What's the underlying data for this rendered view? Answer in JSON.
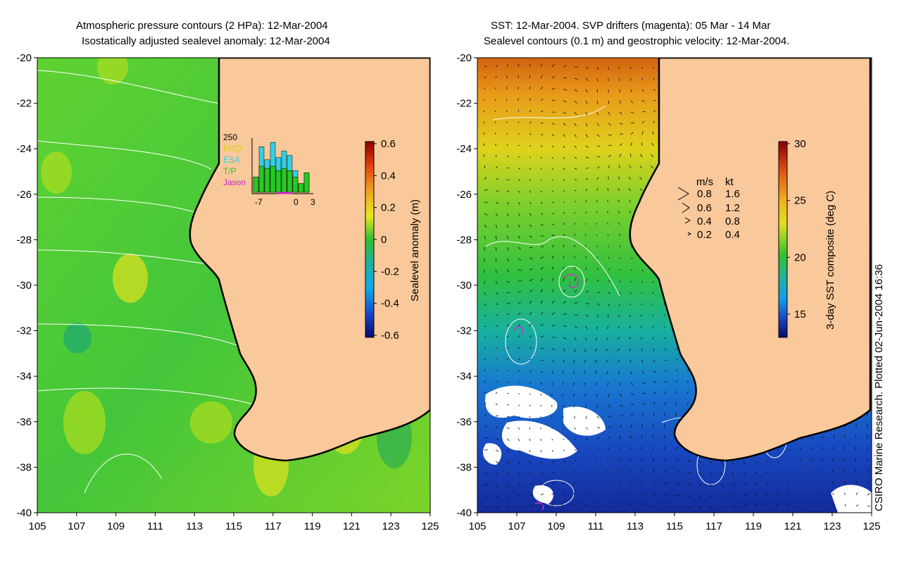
{
  "left_panel": {
    "title_line1": "Atmospheric pressure contours (2 HPa): 12-Mar-2004",
    "title_line2": "Isostatically adjusted sealevel anomaly: 12-Mar-2004",
    "x_ticks": [
      "105",
      "107",
      "109",
      "111",
      "113",
      "115",
      "117",
      "119",
      "121",
      "123",
      "125"
    ],
    "y_ticks": [
      "-20",
      "-22",
      "-24",
      "-26",
      "-28",
      "-30",
      "-32",
      "-34",
      "-36",
      "-38",
      "-40"
    ],
    "colorbar_label": "Sealevel anomaly (m)",
    "colorbar_ticks": [
      "0.6",
      "0.4",
      "0.2",
      "0",
      "-0.2",
      "-0.4",
      "-0.6"
    ],
    "histogram": {
      "y_max_label": "250",
      "x_labels": [
        "-7",
        "0",
        "3"
      ],
      "legend": [
        {
          "label": "ERO",
          "color": "#d4d400"
        },
        {
          "label": "ESA",
          "color": "#30d0e8"
        },
        {
          "label": "T/P",
          "color": "#22cc22"
        },
        {
          "label": "Jason",
          "color": "#cc22cc"
        }
      ],
      "values_total": [
        70,
        210,
        150,
        230,
        160,
        190,
        170,
        100,
        40,
        90
      ],
      "values_tp": [
        70,
        120,
        110,
        120,
        100,
        110,
        100,
        70,
        40,
        90
      ]
    }
  },
  "right_panel": {
    "title_line1": "SST: 12-Mar-2004. SVP drifters (magenta): 05 Mar - 14 Mar",
    "title_line2": "Sealevel contours (0.1 m) and geostrophic velocity: 12-Mar-2004.",
    "x_ticks": [
      "105",
      "107",
      "109",
      "111",
      "113",
      "115",
      "117",
      "119",
      "121",
      "123",
      "125"
    ],
    "y_ticks": [
      "-20",
      "-22",
      "-24",
      "-26",
      "-28",
      "-30",
      "-32",
      "-34",
      "-36",
      "-38",
      "-40"
    ],
    "colorbar_label": "3-day SST composite (deg C)",
    "colorbar_ticks": [
      "30",
      "25",
      "20",
      "15"
    ],
    "velocity_legend": {
      "header_ms": "m/s",
      "header_kt": "kt",
      "rows": [
        {
          "ms": "0.8",
          "kt": "1.6"
        },
        {
          "ms": "0.6",
          "kt": "1.2"
        },
        {
          "ms": "0.4",
          "kt": "0.8"
        },
        {
          "ms": "0.2",
          "kt": "0.4"
        }
      ]
    }
  },
  "credit": "CSIRO Marine Research. Plotted 02-Jun-2004 16:36",
  "colors": {
    "land": "#f9c89b",
    "coast": "#000000",
    "contour": "#ffffff",
    "drifter": "#cc33cc"
  }
}
